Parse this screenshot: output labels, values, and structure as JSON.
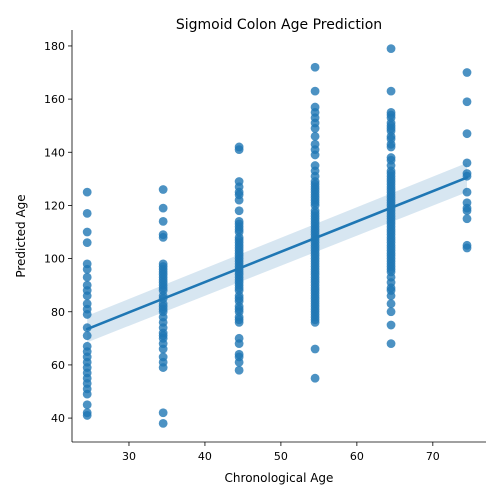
{
  "chart_data": {
    "type": "scatter",
    "title": "Sigmoid Colon Age Prediction",
    "xlabel": "Chronological Age",
    "ylabel": "Predicted Age",
    "xlim": [
      22.5,
      77
    ],
    "ylim": [
      31,
      186
    ],
    "xticks": [
      30,
      40,
      50,
      60,
      70
    ],
    "yticks": [
      40,
      60,
      80,
      100,
      120,
      140,
      160,
      180
    ],
    "grid": false,
    "legend": "none",
    "point_color": "#1f77b4",
    "regression": {
      "x": [
        24.5,
        74.5
      ],
      "y": [
        73.5,
        130.5
      ],
      "ci_lower": [
        68.5,
        125
      ],
      "ci_upper": [
        78.5,
        136
      ],
      "color": "#1f77b4"
    },
    "series": [
      {
        "x": 24.5,
        "y": [
          125,
          117,
          110,
          106,
          98,
          96,
          93,
          90,
          88,
          86,
          83,
          81,
          79,
          74,
          71,
          67,
          65,
          63,
          61,
          59,
          57,
          55,
          53,
          51,
          49,
          45,
          42,
          41
        ]
      },
      {
        "x": 34.5,
        "y": [
          126,
          119,
          114,
          109,
          108,
          98,
          97,
          96,
          95,
          94,
          93,
          92,
          91,
          90,
          89,
          88,
          86,
          85,
          83,
          82,
          81,
          80,
          78,
          76,
          74,
          72,
          71,
          70,
          68,
          66,
          63,
          61,
          59,
          42,
          38
        ]
      },
      {
        "x": 44.5,
        "y": [
          142,
          141,
          129,
          127,
          125,
          124,
          122,
          118,
          114,
          113,
          112,
          111,
          110,
          108,
          107,
          106,
          105,
          104,
          103,
          102,
          101,
          100,
          99,
          98,
          97,
          96,
          95,
          94,
          93,
          92,
          91,
          90,
          89,
          88,
          86,
          85,
          84,
          82,
          81,
          80,
          78,
          77,
          76,
          70,
          68,
          64,
          63,
          61,
          58
        ]
      },
      {
        "x": 54.5,
        "y": [
          172,
          163,
          157,
          155,
          153,
          151,
          149,
          146,
          143,
          141,
          139,
          135,
          133,
          131,
          129,
          128,
          127,
          126,
          125,
          124,
          123,
          122,
          121,
          120,
          118,
          117,
          116,
          115,
          114,
          113,
          112,
          111,
          110,
          109,
          108,
          107,
          106,
          105,
          104,
          103,
          102,
          101,
          100,
          99,
          98,
          97,
          96,
          95,
          94,
          93,
          92,
          91,
          90,
          89,
          88,
          87,
          86,
          85,
          84,
          83,
          82,
          81,
          80,
          79,
          78,
          77,
          76,
          66,
          55
        ]
      },
      {
        "x": 64.5,
        "y": [
          179,
          163,
          155,
          154,
          153,
          151,
          150,
          149,
          148,
          146,
          145,
          143,
          142,
          138,
          137,
          135,
          133,
          132,
          131,
          130,
          129,
          128,
          127,
          126,
          125,
          124,
          123,
          122,
          121,
          120,
          119,
          118,
          117,
          116,
          115,
          114,
          113,
          112,
          111,
          110,
          109,
          108,
          107,
          106,
          105,
          104,
          103,
          102,
          101,
          100,
          99,
          98,
          97,
          96,
          95,
          93,
          91,
          89,
          88,
          86,
          83,
          80,
          75,
          68
        ]
      },
      {
        "x": 74.5,
        "y": [
          170,
          159,
          147,
          136,
          132,
          131,
          125,
          121,
          119,
          118,
          115,
          105,
          104
        ]
      }
    ]
  }
}
